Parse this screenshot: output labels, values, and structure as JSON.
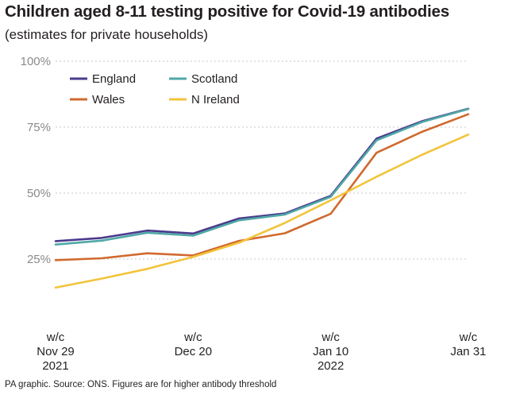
{
  "title": "Children aged 8-11 testing positive for Covid-19 antibodies",
  "subtitle": "(estimates for private households)",
  "source": "PA graphic. Source: ONS. Figures are for higher antibody threshold",
  "chart_data": {
    "type": "line",
    "x": [
      0,
      1,
      2,
      3,
      4,
      5,
      6,
      7,
      8,
      9
    ],
    "x_tick_labels": [
      {
        "pos": 0,
        "lines": [
          "w/c",
          "Nov 29",
          "2021"
        ]
      },
      {
        "pos": 3,
        "lines": [
          "w/c",
          "Dec 20"
        ]
      },
      {
        "pos": 6,
        "lines": [
          "w/c",
          "Jan 10",
          "2022"
        ]
      },
      {
        "pos": 9,
        "lines": [
          "w/c",
          "Jan 31"
        ]
      }
    ],
    "ylim": [
      0,
      100
    ],
    "y_ticks": [
      {
        "value": 25,
        "label": "25%"
      },
      {
        "value": 50,
        "label": "50%"
      },
      {
        "value": 75,
        "label": "75%"
      },
      {
        "value": 100,
        "label": "100%"
      }
    ],
    "grid": true,
    "legend_position": "top-left",
    "series": [
      {
        "name": "England",
        "color": "#4b3a8c",
        "values": [
          31.8,
          33.0,
          35.8,
          34.7,
          40.4,
          42.3,
          49.0,
          70.7,
          77.3,
          82.0
        ]
      },
      {
        "name": "Scotland",
        "color": "#4fa8a6",
        "values": [
          30.5,
          32.0,
          35.0,
          33.9,
          39.7,
          41.9,
          48.6,
          70.0,
          77.0,
          81.9
        ]
      },
      {
        "name": "Wales",
        "color": "#d06a2e",
        "values": [
          24.6,
          25.3,
          27.2,
          26.4,
          31.9,
          34.8,
          42.2,
          65.3,
          73.3,
          79.9
        ]
      },
      {
        "name": "N Ireland",
        "color": "#f2c43c",
        "values": [
          14.2,
          17.6,
          21.3,
          25.8,
          31.2,
          38.7,
          47.3,
          56.2,
          64.6,
          72.2
        ]
      }
    ]
  }
}
